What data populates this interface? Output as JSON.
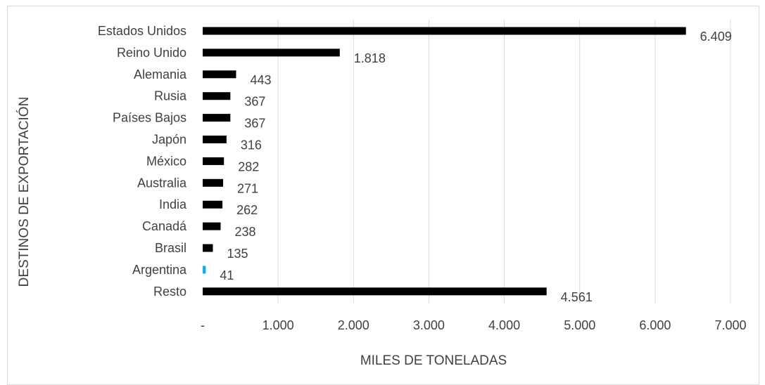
{
  "chart_data": {
    "type": "bar",
    "orientation": "horizontal",
    "title": "",
    "xlabel": "MILES DE TONELADAS",
    "ylabel": "DESTINOS DE EXPORTACIÓN",
    "xlim": [
      0,
      7000
    ],
    "xticks": [
      {
        "value": 0,
        "label": "-"
      },
      {
        "value": 1000,
        "label": "1.000"
      },
      {
        "value": 2000,
        "label": "2.000"
      },
      {
        "value": 3000,
        "label": "3.000"
      },
      {
        "value": 4000,
        "label": "4.000"
      },
      {
        "value": 5000,
        "label": "5.000"
      },
      {
        "value": 6000,
        "label": "6.000"
      },
      {
        "value": 7000,
        "label": "7.000"
      }
    ],
    "grid": "vertical",
    "legend": "none",
    "categories": [
      "Estados Unidos",
      "Reino Unido",
      "Alemania",
      "Rusia",
      "Países Bajos",
      "Japón",
      "México",
      "Australia",
      "India",
      "Canadá",
      "Brasil",
      "Argentina",
      "Resto"
    ],
    "values": [
      6409,
      1818,
      443,
      367,
      367,
      316,
      282,
      271,
      262,
      238,
      135,
      41,
      4561
    ],
    "value_labels": [
      "6.409",
      "1.818",
      "443",
      "367",
      "367",
      "316",
      "282",
      "271",
      "262",
      "238",
      "135",
      "41",
      "4.561"
    ],
    "colors": {
      "bar": "#000000",
      "highlight": "#1fa9e1",
      "grid": "#d9d9d9",
      "text": "#404040"
    },
    "highlight_category": "Argentina"
  }
}
